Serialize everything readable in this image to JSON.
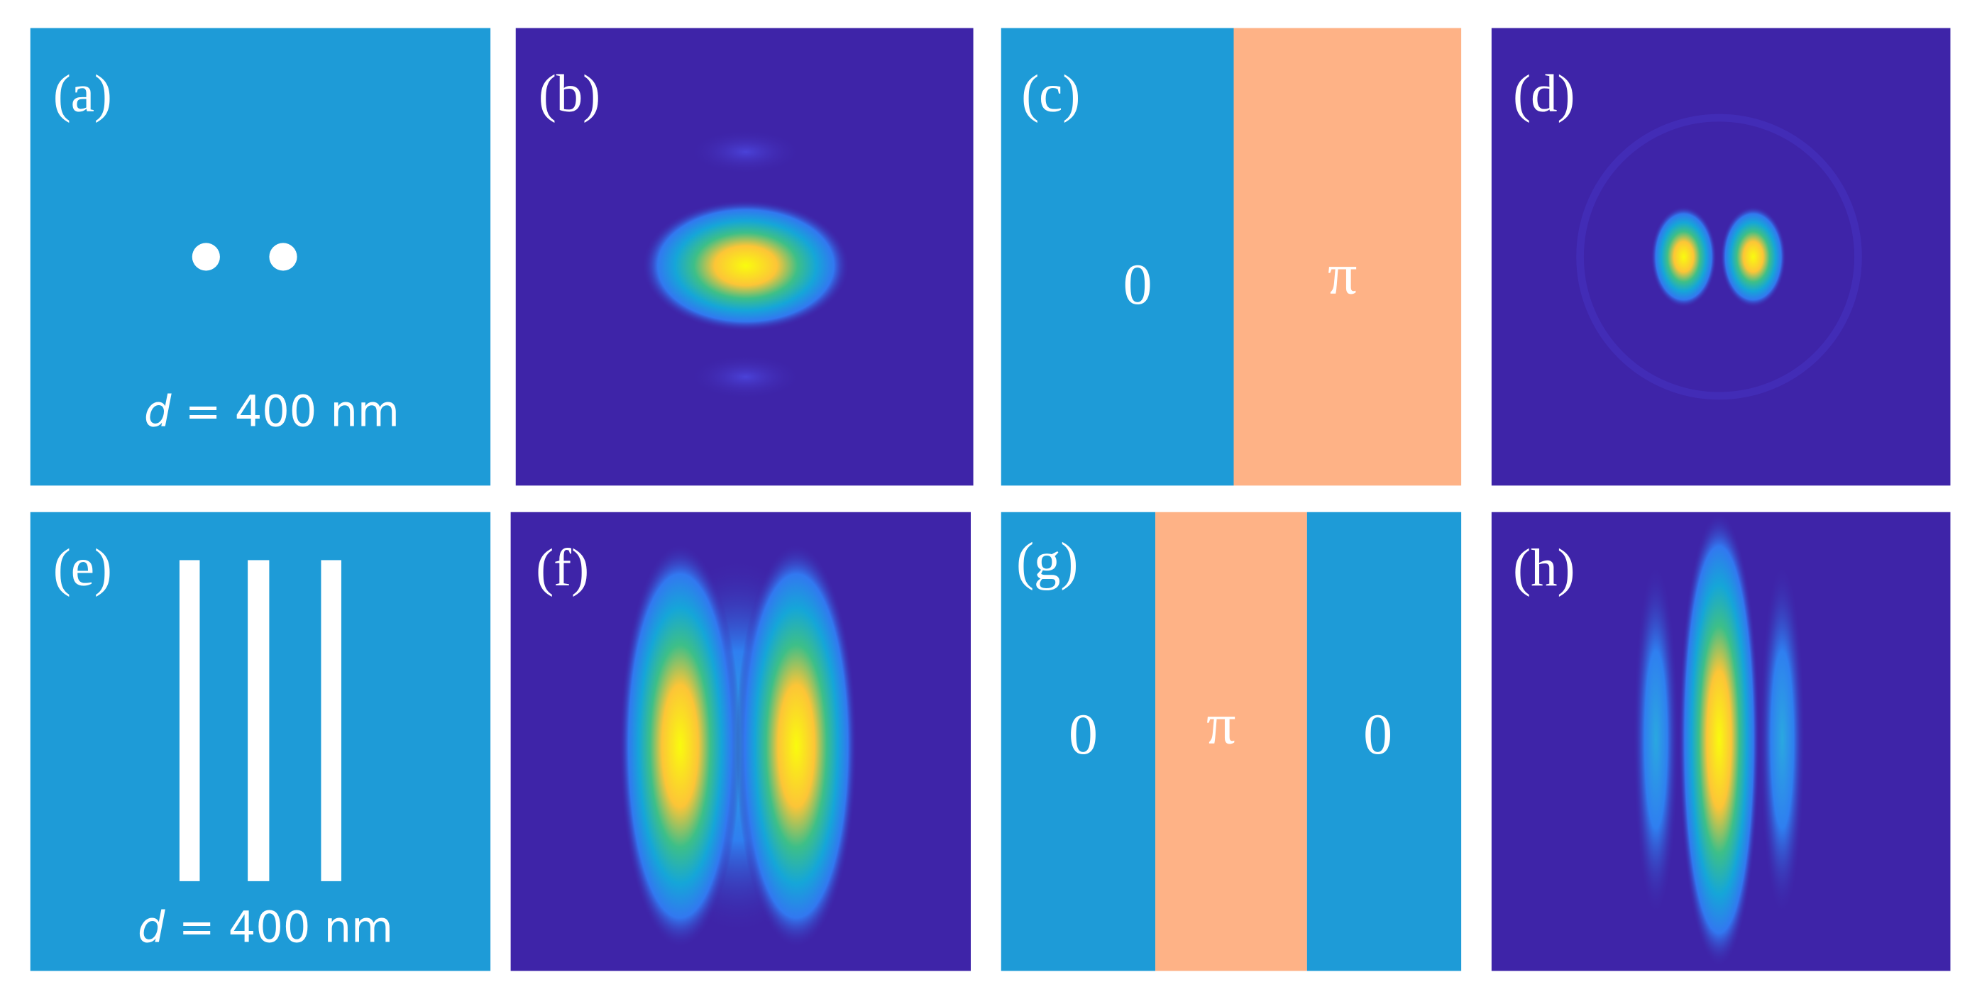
{
  "panels": [
    {
      "label": "(a)",
      "annotation": {
        "variable": "d",
        "text": "= 400 nm"
      }
    },
    {
      "label": "(b)"
    },
    {
      "label": "(c)",
      "phases": [
        "0",
        "π"
      ]
    },
    {
      "label": "(d)"
    },
    {
      "label": "(e)",
      "annotation": {
        "variable": "d",
        "text": "= 400 nm"
      }
    },
    {
      "label": "(f)"
    },
    {
      "label": "(g)",
      "phases": [
        "0",
        "π",
        "0"
      ]
    },
    {
      "label": "(h)"
    }
  ]
}
